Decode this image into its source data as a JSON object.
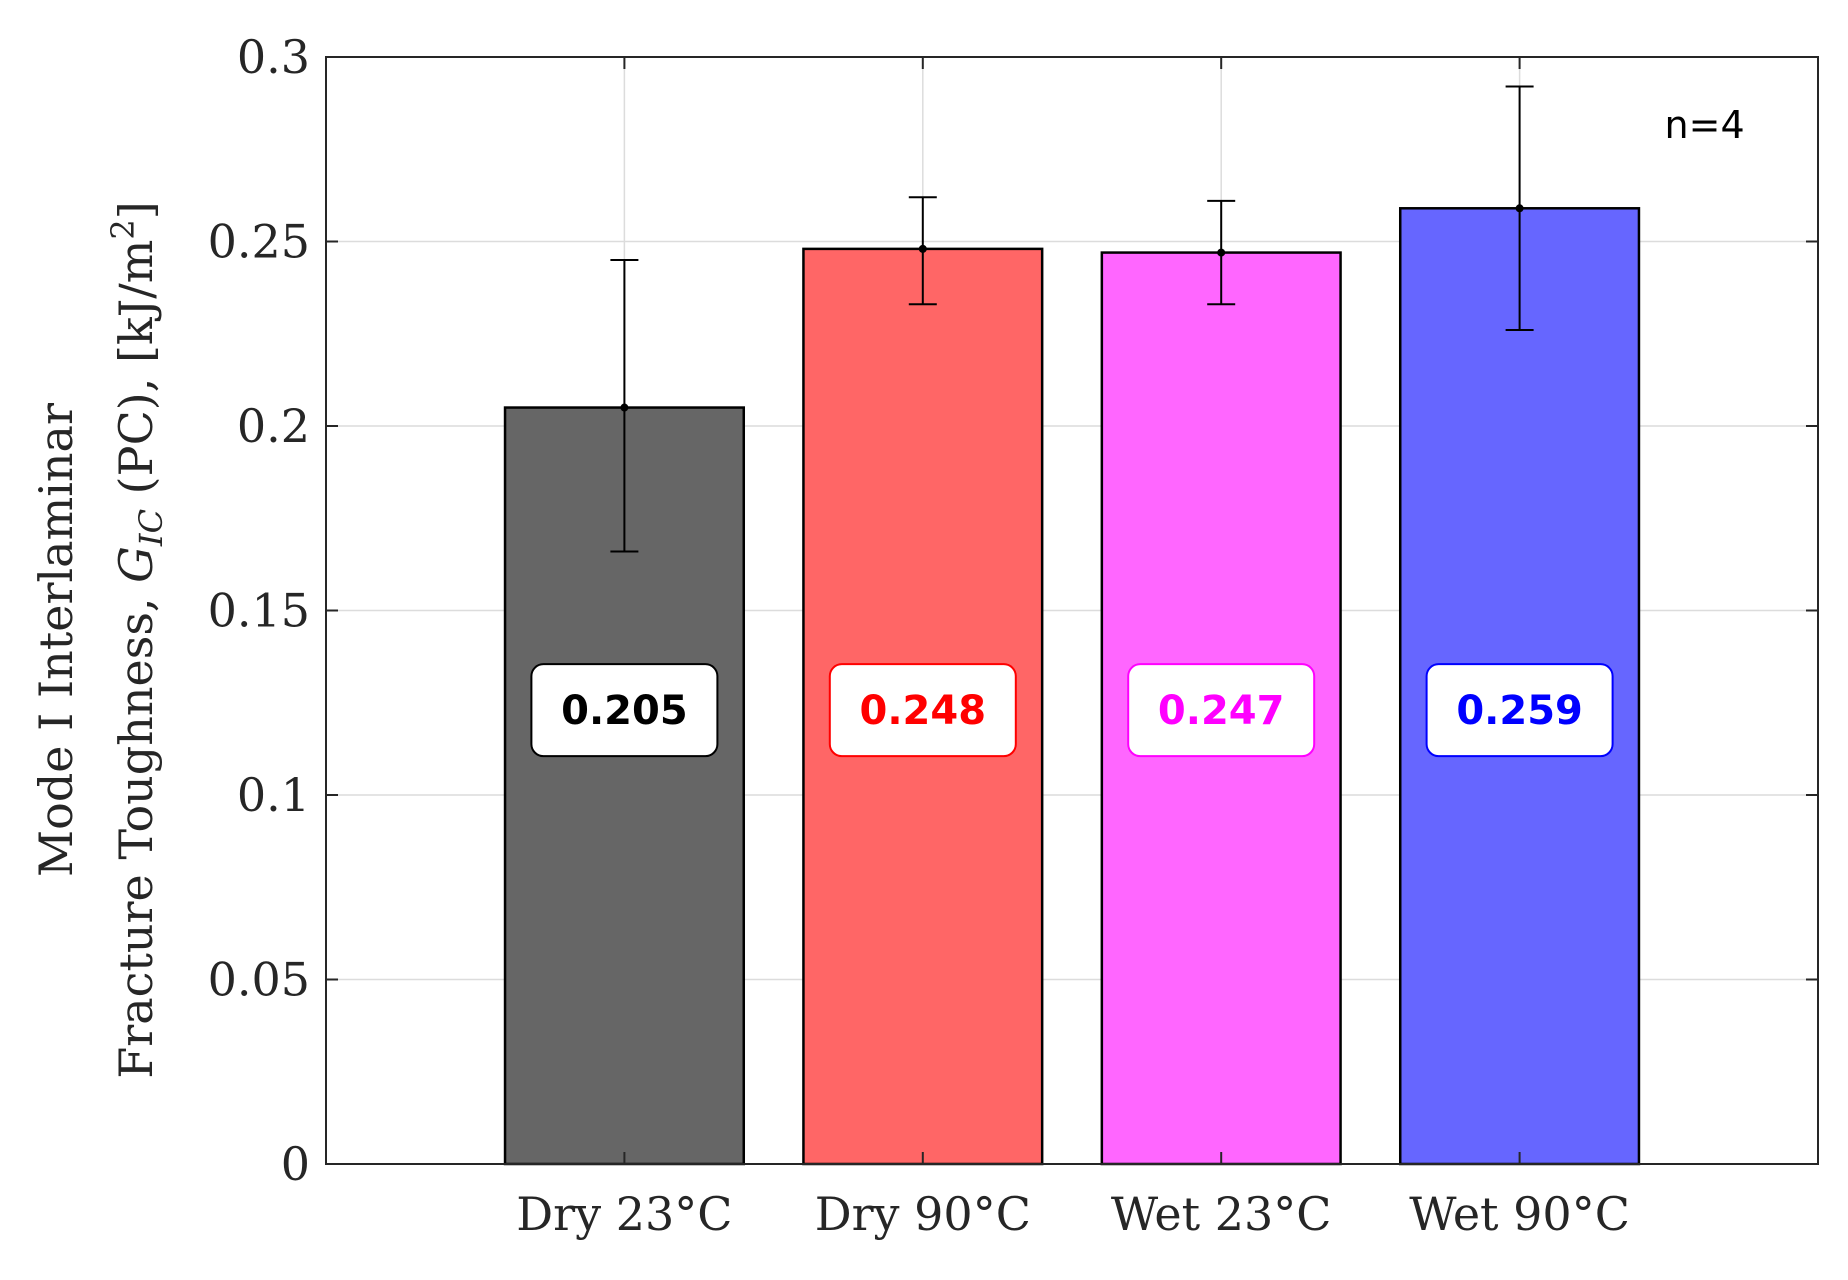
{
  "chart_data": {
    "type": "bar",
    "categories": [
      "Dry 23°C",
      "Dry 90°C",
      "Wet 23°C",
      "Wet 90°C"
    ],
    "values": [
      0.205,
      0.248,
      0.247,
      0.259
    ],
    "err_low": [
      0.166,
      0.233,
      0.233,
      0.226
    ],
    "err_high": [
      0.245,
      0.262,
      0.261,
      0.292
    ],
    "colors": [
      "#666666",
      "#ff6666",
      "#ff66ff",
      "#6666ff"
    ],
    "label_colors": [
      "#000000",
      "#ff0000",
      "#ff00ff",
      "#0000ff"
    ],
    "value_labels": [
      "0.205",
      "0.248",
      "0.247",
      "0.259"
    ],
    "label_y": 0.123,
    "ylabel_line1": "Mode I Interlaminar",
    "ylabel_line2_prefix": "Fracture Toughness, ",
    "ylabel_symbol": "G",
    "ylabel_subscript": "IC",
    "ylabel_line2_suffix": " (PC), [kJ/m",
    "ylabel_superscript": "2",
    "ylabel_close": "]",
    "ylim": [
      0,
      0.3
    ],
    "yticks": [
      0,
      0.05,
      0.1,
      0.15,
      0.2,
      0.25,
      0.3
    ],
    "ytick_labels": [
      "0",
      "0.05",
      "0.1",
      "0.15",
      "0.2",
      "0.25",
      "0.3"
    ],
    "xlim": [
      0,
      5
    ],
    "annotation": "n=4",
    "grid": true
  }
}
